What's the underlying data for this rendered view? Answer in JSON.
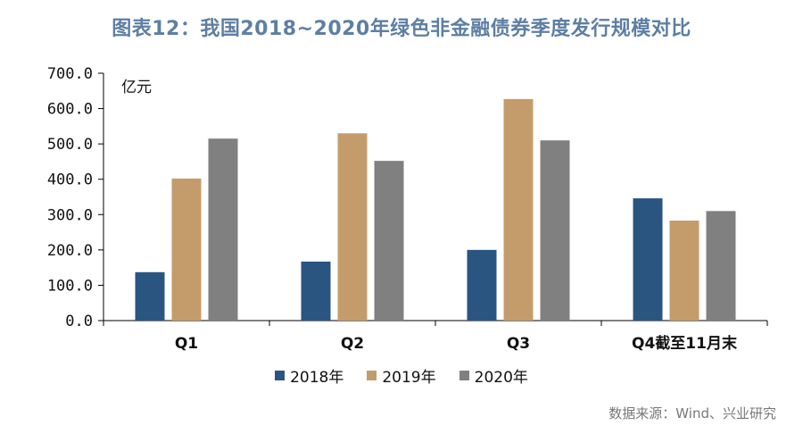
{
  "header": {
    "title": "图表12：我国2018~2020年绿色非金融债券季度发行规模对比"
  },
  "source": "数据来源：Wind、兴业研究",
  "chart_data": {
    "type": "bar",
    "ylabel": "亿元",
    "ylim": [
      0,
      700
    ],
    "yticks": [
      "0.0",
      "100.0",
      "200.0",
      "300.0",
      "400.0",
      "500.0",
      "600.0",
      "700.0"
    ],
    "categories": [
      "Q1",
      "Q2",
      "Q3",
      "Q4截至11月末"
    ],
    "series": [
      {
        "name": "2018年",
        "color": "#2a5580",
        "values": [
          137,
          167,
          200,
          346
        ]
      },
      {
        "name": "2019年",
        "color": "#c49c6c",
        "values": [
          402,
          530,
          627,
          283
        ]
      },
      {
        "name": "2020年",
        "color": "#808080",
        "values": [
          515,
          452,
          510,
          310
        ]
      }
    ],
    "legend_position": "bottom",
    "grid": false
  }
}
